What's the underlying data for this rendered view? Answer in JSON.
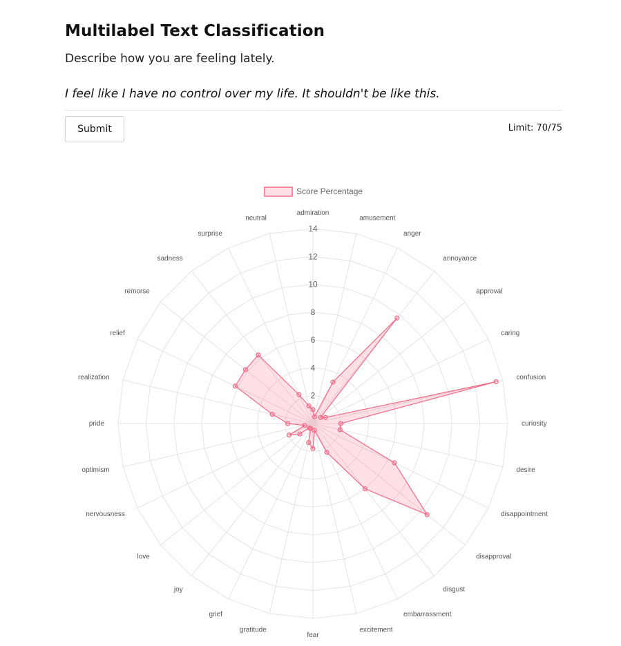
{
  "header": {
    "title": "Multilabel Text Classification"
  },
  "prompt": "Describe how you are feeling lately.",
  "input_text": "I feel like I have no control over my life. It shouldn't be like this.",
  "submit_label": "Submit",
  "limit": {
    "label": "Limit:",
    "value": "70/75"
  },
  "chart_data": {
    "type": "radar",
    "legend": {
      "label": "Score Percentage",
      "position": "top"
    },
    "colors": {
      "fill": "rgba(255,99,132,0.2)",
      "stroke": "#f06a86",
      "grid": "#e3e3e3",
      "tick_text": "#666666"
    },
    "r_min": 0,
    "r_max": 14,
    "ticks": [
      2,
      4,
      6,
      8,
      10,
      12,
      14
    ],
    "labels": [
      "admiration",
      "amusement",
      "anger",
      "annoyance",
      "approval",
      "caring",
      "confusion",
      "curiosity",
      "desire",
      "disappointment",
      "disapproval",
      "disgust",
      "embarrassment",
      "excitement",
      "fear",
      "gratitude",
      "grief",
      "joy",
      "love",
      "nervousness",
      "optimism",
      "pride",
      "realization",
      "relief",
      "remorse",
      "sadness",
      "surprise",
      "neutral"
    ],
    "series": [
      {
        "name": "Score Percentage",
        "values": [
          1.0,
          0.5,
          3.3,
          9.7,
          0.7,
          1.0,
          13.5,
          2.0,
          2.0,
          6.5,
          10.5,
          6.0,
          2.3,
          0.5,
          1.8,
          1.4,
          0.4,
          0.4,
          1.2,
          1.9,
          0.6,
          1.8,
          3.0,
          6.2,
          6.2,
          6.3,
          2.3,
          1.3
        ]
      }
    ]
  }
}
